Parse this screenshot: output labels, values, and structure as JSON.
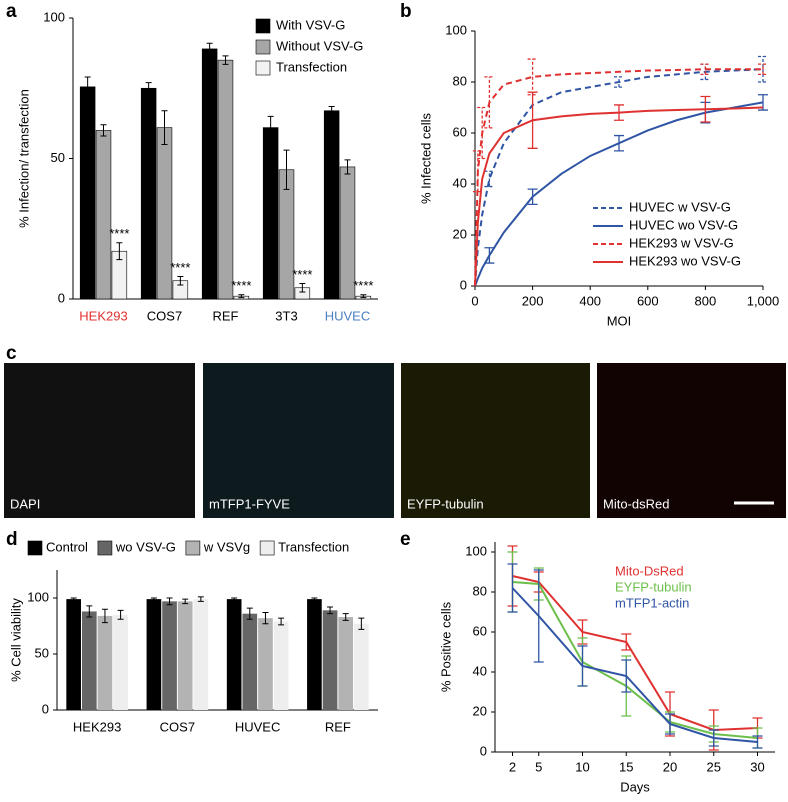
{
  "chart_data": [
    {
      "panel": "a",
      "type": "bar",
      "ylabel": "% Infection/ transfection",
      "categories": [
        "HEK293",
        "COS7",
        "REF",
        "3T3",
        "HUVEC"
      ],
      "category_colors": [
        "#e03131",
        "#000000",
        "#000000",
        "#000000",
        "#4a7fc1"
      ],
      "series": [
        {
          "name": "With VSV-G",
          "color": "#000000",
          "values": [
            75.5,
            75,
            89,
            61,
            67
          ],
          "errors": [
            3.5,
            2,
            2,
            4,
            1.5
          ]
        },
        {
          "name": "Without VSV-G",
          "color": "#a6a6a6",
          "values": [
            60,
            61,
            85,
            46,
            47
          ],
          "errors": [
            2,
            6,
            1.5,
            7,
            2.5
          ]
        },
        {
          "name": "Transfection",
          "color": "#f2f2f2",
          "values": [
            17,
            6.5,
            1,
            4,
            1
          ],
          "errors": [
            3,
            1.5,
            0.5,
            1.5,
            0.5
          ]
        }
      ],
      "annotations": [
        "****",
        "****",
        "****",
        "****",
        "****"
      ],
      "ylim": [
        0,
        100
      ],
      "yticks": [
        0,
        50,
        100
      ],
      "legend": "upper right"
    },
    {
      "panel": "b",
      "type": "line",
      "ylabel": "% Infected cells",
      "xlabel": "MOI",
      "x": [
        0,
        10,
        25,
        50,
        100,
        200,
        300,
        400,
        500,
        600,
        700,
        800,
        900,
        1000
      ],
      "series": [
        {
          "name": "HUVEC w VSV-G",
          "color": "#2f55a4",
          "dashed": true,
          "values": [
            0,
            15,
            28,
            42,
            56,
            71,
            76,
            78,
            80,
            82,
            83,
            84,
            84.5,
            85
          ],
          "errors": [
            null,
            null,
            null,
            3,
            null,
            null,
            null,
            null,
            2,
            null,
            null,
            3,
            null,
            5
          ]
        },
        {
          "name": "HUVEC wo VSV-G",
          "color": "#2f55a4",
          "dashed": false,
          "values": [
            0,
            3,
            7,
            12,
            21,
            35,
            44,
            51,
            56,
            61,
            65,
            68,
            70,
            72
          ],
          "errors": [
            null,
            null,
            null,
            3,
            null,
            3,
            null,
            null,
            3,
            null,
            null,
            4,
            null,
            3
          ]
        },
        {
          "name": "HEK293 w VSV-G",
          "color": "#e03131",
          "dashed": true,
          "values": [
            0,
            45,
            60,
            72,
            79,
            82,
            83,
            83.5,
            84,
            84.5,
            84.7,
            85,
            85,
            85
          ],
          "errors": [
            null,
            8,
            10,
            10,
            null,
            7,
            null,
            null,
            null,
            null,
            null,
            2,
            null,
            2
          ]
        },
        {
          "name": "HEK293 wo VSV-G",
          "color": "#e03131",
          "dashed": false,
          "values": [
            0,
            25,
            42,
            52,
            60,
            65,
            66.5,
            67.5,
            68,
            68.7,
            69,
            69.3,
            69.6,
            70
          ],
          "errors": [
            null,
            null,
            null,
            null,
            null,
            11,
            null,
            null,
            3,
            null,
            null,
            5,
            null,
            null
          ]
        }
      ],
      "xlim": [
        0,
        1000
      ],
      "xticks": [
        0,
        200,
        400,
        600,
        800,
        {
          "value": 1000,
          "label": "1,000"
        }
      ],
      "ylim": [
        0,
        100
      ],
      "yticks": [
        0,
        20,
        40,
        60,
        80,
        100
      ],
      "legend": "lower right",
      "legend_markers": true
    },
    {
      "panel": "d",
      "type": "bar",
      "ylabel": "% Cell viability",
      "categories": [
        "HEK293",
        "COS7",
        "HUVEC",
        "REF"
      ],
      "series": [
        {
          "name": "Control",
          "color": "#000000",
          "values": [
            99,
            99,
            99,
            99
          ],
          "errors": [
            1,
            1,
            1,
            1
          ]
        },
        {
          "name": "wo VSV-G",
          "color": "#666666",
          "values": [
            88,
            97,
            86,
            89
          ],
          "errors": [
            5,
            3,
            5,
            3
          ]
        },
        {
          "name": "w VSVg",
          "color": "#b3b3b3",
          "values": [
            84,
            97,
            82,
            83
          ],
          "errors": [
            6,
            2,
            5,
            3
          ]
        },
        {
          "name": "Transfection",
          "color": "#eeeeee",
          "values": [
            85,
            99,
            79,
            77
          ],
          "errors": [
            4,
            2,
            3,
            5
          ]
        }
      ],
      "ylim": [
        0,
        125
      ],
      "yticks": [
        0,
        50,
        100
      ],
      "legend": "top"
    },
    {
      "panel": "e",
      "type": "line",
      "ylabel": "% Positive cells",
      "xlabel": "Days",
      "x": [
        2,
        5,
        10,
        15,
        20,
        25,
        30
      ],
      "series": [
        {
          "name": "Mito-DsRed",
          "color": "#e03131",
          "values": [
            88,
            85,
            60,
            55,
            19,
            11,
            12
          ],
          "errors": [
            15,
            5,
            6,
            4,
            11,
            10,
            5
          ]
        },
        {
          "name": "EYFP-tubulin",
          "color": "#6cbf4a",
          "values": [
            85,
            84,
            45,
            33,
            15,
            9,
            7
          ],
          "errors": [
            15,
            8,
            12,
            15,
            5,
            4,
            5
          ]
        },
        {
          "name": "mTFP1-actin",
          "color": "#2f55a4",
          "values": [
            82,
            68,
            43,
            38,
            14,
            7,
            5
          ],
          "errors": [
            12,
            23,
            10,
            8,
            5,
            4,
            3
          ]
        }
      ],
      "xlim": [
        0,
        32
      ],
      "xticks": [
        2,
        5,
        10,
        15,
        20,
        25,
        30
      ],
      "ylim": [
        0,
        105
      ],
      "yticks": [
        0,
        20,
        40,
        60,
        80,
        100
      ],
      "legend": "upper right",
      "legend_markers": false
    }
  ],
  "images": {
    "label": "c",
    "panels": [
      "DAPI",
      "mTFP1-FYVE",
      "EYFP-tubulin",
      "Mito-dsRed"
    ]
  }
}
